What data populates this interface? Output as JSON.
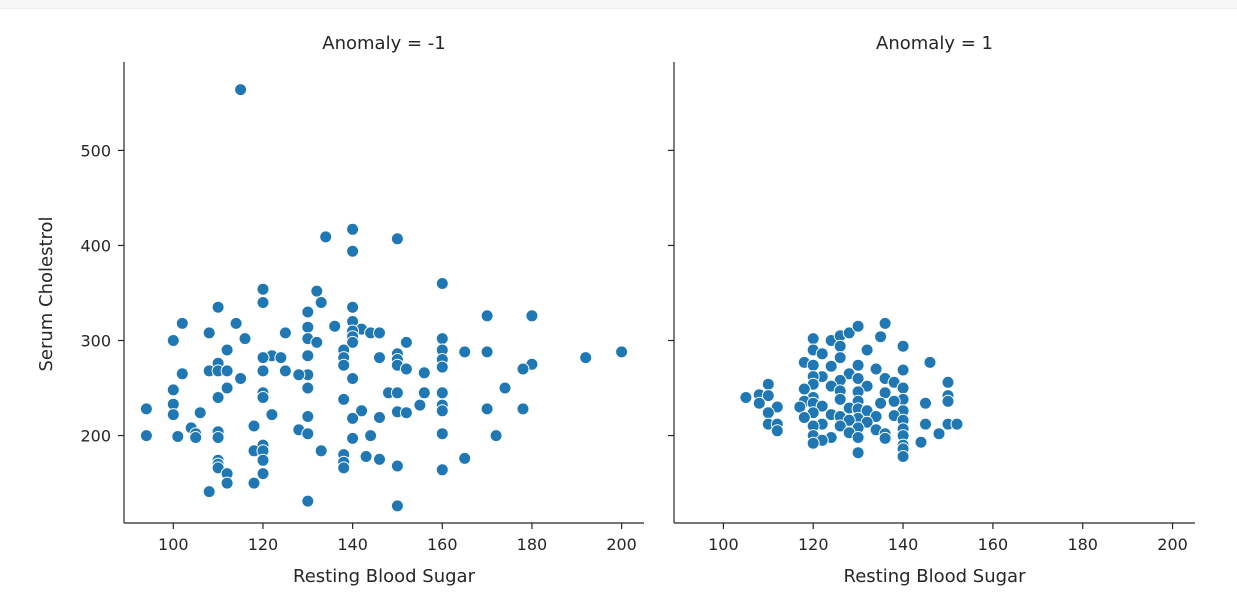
{
  "chart_data": {
    "type": "scatter",
    "xlabel": "Resting Blood Sugar",
    "ylabel": "Serum Cholestrol",
    "xlim": [
      89,
      205
    ],
    "ylim": [
      108,
      593
    ],
    "xticks": [
      "100",
      "120",
      "140",
      "160",
      "180",
      "200"
    ],
    "yticks": [
      "200",
      "300",
      "400",
      "500"
    ],
    "marker_color": "#1f77b4",
    "panels": [
      {
        "title": "Anomaly = -1",
        "points": [
          [
            115,
            564
          ],
          [
            140,
            417
          ],
          [
            134,
            409
          ],
          [
            150,
            407
          ],
          [
            140,
            394
          ],
          [
            160,
            360
          ],
          [
            120,
            354
          ],
          [
            132,
            352
          ],
          [
            120,
            340
          ],
          [
            133,
            340
          ],
          [
            110,
            335
          ],
          [
            140,
            335
          ],
          [
            130,
            330
          ],
          [
            180,
            326
          ],
          [
            170,
            326
          ],
          [
            140,
            320
          ],
          [
            102,
            318
          ],
          [
            114,
            318
          ],
          [
            136,
            315
          ],
          [
            130,
            314
          ],
          [
            142,
            312
          ],
          [
            140,
            310
          ],
          [
            144,
            308
          ],
          [
            108,
            308
          ],
          [
            125,
            308
          ],
          [
            146,
            308
          ],
          [
            140,
            304
          ],
          [
            116,
            302
          ],
          [
            130,
            302
          ],
          [
            160,
            302
          ],
          [
            100,
            300
          ],
          [
            152,
            298
          ],
          [
            132,
            298
          ],
          [
            140,
            298
          ],
          [
            112,
            290
          ],
          [
            138,
            290
          ],
          [
            160,
            290
          ],
          [
            150,
            286
          ],
          [
            122,
            284
          ],
          [
            130,
            284
          ],
          [
            165,
            288
          ],
          [
            170,
            288
          ],
          [
            200,
            288
          ],
          [
            120,
            282
          ],
          [
            124,
            282
          ],
          [
            138,
            282
          ],
          [
            146,
            282
          ],
          [
            192,
            282
          ],
          [
            160,
            280
          ],
          [
            150,
            280
          ],
          [
            110,
            276
          ],
          [
            180,
            275
          ],
          [
            138,
            274
          ],
          [
            150,
            274
          ],
          [
            160,
            272
          ],
          [
            178,
            270
          ],
          [
            152,
            270
          ],
          [
            108,
            268
          ],
          [
            110,
            268
          ],
          [
            112,
            268
          ],
          [
            120,
            268
          ],
          [
            125,
            268
          ],
          [
            130,
            264
          ],
          [
            156,
            266
          ],
          [
            128,
            264
          ],
          [
            102,
            265
          ],
          [
            115,
            260
          ],
          [
            140,
            260
          ],
          [
            130,
            250
          ],
          [
            112,
            250
          ],
          [
            174,
            250
          ],
          [
            100,
            248
          ],
          [
            120,
            245
          ],
          [
            148,
            245
          ],
          [
            150,
            245
          ],
          [
            156,
            245
          ],
          [
            160,
            245
          ],
          [
            110,
            240
          ],
          [
            120,
            240
          ],
          [
            138,
            238
          ],
          [
            155,
            232
          ],
          [
            160,
            232
          ],
          [
            100,
            233
          ],
          [
            94,
            228
          ],
          [
            170,
            228
          ],
          [
            178,
            228
          ],
          [
            160,
            226
          ],
          [
            142,
            226
          ],
          [
            150,
            225
          ],
          [
            152,
            224
          ],
          [
            106,
            224
          ],
          [
            100,
            222
          ],
          [
            122,
            222
          ],
          [
            130,
            220
          ],
          [
            146,
            219
          ],
          [
            140,
            218
          ],
          [
            118,
            210
          ],
          [
            104,
            208
          ],
          [
            128,
            206
          ],
          [
            110,
            204
          ],
          [
            105,
            202
          ],
          [
            130,
            202
          ],
          [
            160,
            202
          ],
          [
            94,
            200
          ],
          [
            101,
            199
          ],
          [
            105,
            198
          ],
          [
            110,
            198
          ],
          [
            144,
            200
          ],
          [
            172,
            200
          ],
          [
            140,
            197
          ],
          [
            120,
            190
          ],
          [
            118,
            184
          ],
          [
            120,
            184
          ],
          [
            133,
            184
          ],
          [
            138,
            180
          ],
          [
            143,
            178
          ],
          [
            146,
            175
          ],
          [
            165,
            176
          ],
          [
            120,
            174
          ],
          [
            110,
            174
          ],
          [
            110,
            170
          ],
          [
            138,
            172
          ],
          [
            110,
            166
          ],
          [
            138,
            166
          ],
          [
            150,
            168
          ],
          [
            160,
            164
          ],
          [
            112,
            160
          ],
          [
            120,
            160
          ],
          [
            112,
            150
          ],
          [
            118,
            150
          ],
          [
            108,
            141
          ],
          [
            130,
            131
          ],
          [
            150,
            126
          ]
        ]
      },
      {
        "title": "Anomaly = 1",
        "points": [
          [
            120,
            302
          ],
          [
            124,
            300
          ],
          [
            126,
            305
          ],
          [
            128,
            308
          ],
          [
            130,
            315
          ],
          [
            136,
            318
          ],
          [
            135,
            304
          ],
          [
            140,
            294
          ],
          [
            126,
            294
          ],
          [
            132,
            290
          ],
          [
            120,
            290
          ],
          [
            122,
            286
          ],
          [
            126,
            282
          ],
          [
            118,
            277
          ],
          [
            146,
            277
          ],
          [
            120,
            274
          ],
          [
            124,
            273
          ],
          [
            130,
            274
          ],
          [
            134,
            270
          ],
          [
            140,
            269
          ],
          [
            128,
            265
          ],
          [
            122,
            262
          ],
          [
            120,
            262
          ],
          [
            130,
            260
          ],
          [
            136,
            260
          ],
          [
            126,
            258
          ],
          [
            138,
            256
          ],
          [
            150,
            256
          ],
          [
            110,
            254
          ],
          [
            120,
            254
          ],
          [
            124,
            252
          ],
          [
            132,
            252
          ],
          [
            140,
            250
          ],
          [
            118,
            249
          ],
          [
            126,
            247
          ],
          [
            130,
            246
          ],
          [
            136,
            245
          ],
          [
            108,
            243
          ],
          [
            110,
            242
          ],
          [
            150,
            242
          ],
          [
            120,
            240
          ],
          [
            105,
            240
          ],
          [
            126,
            238
          ],
          [
            140,
            238
          ],
          [
            118,
            236
          ],
          [
            130,
            236
          ],
          [
            138,
            236
          ],
          [
            150,
            236
          ],
          [
            108,
            234
          ],
          [
            120,
            234
          ],
          [
            135,
            234
          ],
          [
            145,
            234
          ],
          [
            122,
            231
          ],
          [
            112,
            230
          ],
          [
            117,
            230
          ],
          [
            128,
            229
          ],
          [
            130,
            228
          ],
          [
            132,
            226
          ],
          [
            140,
            226
          ],
          [
            110,
            224
          ],
          [
            120,
            224
          ],
          [
            124,
            222
          ],
          [
            126,
            220
          ],
          [
            134,
            220
          ],
          [
            138,
            221
          ],
          [
            118,
            219
          ],
          [
            130,
            218
          ],
          [
            110,
            212
          ],
          [
            112,
            212
          ],
          [
            128,
            216
          ],
          [
            132,
            214
          ],
          [
            140,
            216
          ],
          [
            122,
            212
          ],
          [
            145,
            212
          ],
          [
            150,
            212
          ],
          [
            152,
            212
          ],
          [
            120,
            210
          ],
          [
            126,
            210
          ],
          [
            112,
            205
          ],
          [
            130,
            208
          ],
          [
            134,
            206
          ],
          [
            140,
            207
          ],
          [
            128,
            203
          ],
          [
            136,
            202
          ],
          [
            148,
            202
          ],
          [
            120,
            200
          ],
          [
            124,
            198
          ],
          [
            130,
            198
          ],
          [
            136,
            197
          ],
          [
            140,
            200
          ],
          [
            122,
            195
          ],
          [
            144,
            193
          ],
          [
            120,
            192
          ],
          [
            140,
            190
          ],
          [
            140,
            186
          ],
          [
            130,
            182
          ],
          [
            140,
            178
          ]
        ]
      }
    ]
  }
}
